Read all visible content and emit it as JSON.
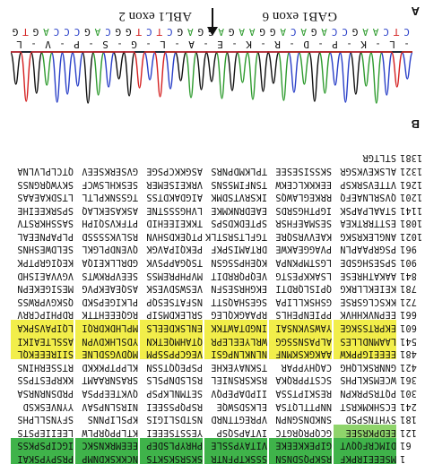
{
  "panel_labels": {
    "a": "A",
    "b": "B"
  },
  "sequence": {
    "rows": [
      {
        "num": "1",
        "blocks": [
          "MSEEEIRPKF",
          "RSKPQSDNSN",
          "SSSKTPFNTR",
          "SKSRSKSKTS",
          "NCKKSKDNMP",
          "PRSPYPSKAI"
        ],
        "hl": [
          "green",
          "green",
          "green",
          "green",
          "green",
          "green"
        ]
      },
      {
        "num": "61",
        "blocks": [
          "DIMCRFQQVT",
          "GIPEKKEEKE",
          "VITAYPSSLE",
          "PHRYPLSDEP",
          "EEEMRKNSKC",
          "IGCIPSPKSS"
        ],
        "hl": [
          "green",
          "green",
          "green",
          "green",
          "green",
          "green"
        ]
      },
      {
        "num": "121",
        "blocks": [
          "EEDPKRSEE",
          "GCQPRQRGTC",
          "IVTAPSQSP",
          "YESSTSEEEI",
          "KTLPPQRPLW",
          "LEEIIEPSTS"
        ],
        "hl": [
          "lime",
          "none",
          "none",
          "none",
          "none",
          "none"
        ]
      },
      {
        "num": "181",
        "blocks": [
          "SYHTNSPSD",
          "SNKDNSGNPN",
          "VPREGTTNRD",
          "NSTDSLIGIS",
          "KPSLIPNNS",
          "SFYNSLLPHS"
        ],
        "hl": [
          "none",
          "none",
          "none",
          "none",
          "none",
          "none"
        ]
      },
      {
        "num": "241",
        "blocks": [
          "ECSHKMKRST",
          "NNPTTLQTSA",
          "ELKSDSWQE",
          "RSPQPSSEEI",
          "NIRSLNPSAV",
          "YYNVESKSD"
        ],
        "hl": [
          "none",
          "none",
          "none",
          "none",
          "none",
          "none"
        ]
      },
      {
        "num": "301",
        "blocks": [
          "PQTRSPRKPN",
          "RESKIPTSSA",
          "IIPDAPEPQV",
          "SETMNLKPSP",
          "QVKTEEPPSA",
          "PRDSNRNRSA"
        ],
        "hl": [
          "none",
          "none",
          "none",
          "none",
          "none",
          "none"
        ]
      },
      {
        "num": "361",
        "blocks": [
          "WCEMSKLPHS",
          "SCSTPPRQKA",
          "RSKSRSNIEL",
          "RSLSDNPSLS",
          "SRASNRAAMT",
          "KKRPESTPSS"
        ],
        "hl": [
          "none",
          "none",
          "none",
          "none",
          "none",
          "none"
        ]
      },
      {
        "num": "421",
        "blocks": [
          "GNNRSKLQHG",
          "CAQHYPPAR",
          "TSKNAYEKHE",
          "PSPEQQTSSN",
          "KLPPTPKKKD",
          "RTSSERHINS"
        ],
        "hl": [
          "none",
          "none",
          "none",
          "none",
          "none",
          "none"
        ]
      },
      {
        "num": "481",
        "blocks": [
          "EEEEIGPPKW",
          "AAKGKSKMNF",
          "NLNKLNPGSI",
          "VEGCPPSSPM",
          "MQDVGSDLNE",
          "SIIREEEKQL"
        ],
        "hl": [
          "yellow",
          "yellow",
          "yellow",
          "yellow",
          "yellow",
          "yellow"
        ]
      },
      {
        "num": "541",
        "blocks": [
          "LAAMNDLLES",
          "ALPASNSSGG",
          "WRLYEELEPR",
          "QTAHMQETKN",
          "YDSLHKDVPN",
          "ASSLTEAIKI"
        ],
        "hl": [
          "yellow",
          "yellow",
          "yellow",
          "yellow",
          "yellow",
          "yellow"
        ]
      },
      {
        "num": "601",
        "blocks": [
          "EKPRTSSKGE",
          "YAWSVKNSAI",
          "INGDTAWTKK",
          "ENLSKDEELS",
          "MPLHDKDRQI",
          "LQIPAVSPKA"
        ],
        "hl": [
          "yellow",
          "yellow",
          "yellow",
          "yellow",
          "yellow",
          "yellow"
        ]
      },
      {
        "num": "661",
        "blocks": [
          "EEPNVKHHVK",
          "PPIENPEHLS",
          "RPAAGKQLEG",
          "SRLEKDMSIP",
          "RGQEEEHTTK",
          "RDPHIPCRRV"
        ],
        "hl": [
          "none",
          "none",
          "none",
          "none",
          "none",
          "none"
        ]
      },
      {
        "num": "721",
        "blocks": [
          "KKSCLGSRSE",
          "GSHSKLLIPA",
          "SGESHAQSTT",
          "NSFATSESQP",
          "PLKIGEPSKD",
          "QSKGVPRWSS"
        ],
        "hl": [
          "none",
          "none",
          "none",
          "none",
          "none",
          "none"
        ]
      },
      {
        "num": "781",
        "blocks": [
          "KEIEKLLRKG",
          "QPISLQRDTI",
          "EKGHRSESFN",
          "VESWSDVESK",
          "ASQEAEKPVG",
          "MESIGEKEPN"
        ],
        "hl": [
          "none",
          "none",
          "none",
          "none",
          "none",
          "none"
        ]
      },
      {
        "num": "841",
        "blocks": [
          "AAKATHRESE",
          "LSAKKPESTG",
          "VEQPQRRDIT",
          "MVPHPREMSS",
          "SEEVPRKWTS",
          "VGVVAEISHD"
        ],
        "hl": [
          "none",
          "none",
          "none",
          "none",
          "none",
          "none"
        ]
      },
      {
        "num": "901",
        "blocks": [
          "SPSESHGSDE",
          "LGSTMPKNPA",
          "KQEHPSSGSN",
          "TSQGAPPSVK",
          "GDRLLKEIQA",
          "KEQIGRPTPK"
        ],
        "hl": [
          "none",
          "none",
          "none",
          "none",
          "none",
          "none"
        ]
      },
      {
        "num": "961",
        "blocks": [
          "PSGRPAAPLN",
          "PVAGGEAKWE",
          "DRTAMISPKF",
          "PEKQIPAVGK",
          "QVENDPLGKL",
          "SELDWESHNS"
        ],
        "hl": [
          "none",
          "none",
          "none",
          "none",
          "none",
          "none"
        ]
      },
      {
        "num": "1021",
        "blocks": [
          "ANGLEKRSKG",
          "KAEVVRSQRE",
          "TGFLTSRSTLK",
          "PTQEKDSHVN",
          "RSLVKSSSSD",
          "PLPAPNEEAL"
        ],
        "hl": [
          "none",
          "none",
          "none",
          "none",
          "none",
          "none"
        ]
      },
      {
        "num": "1081",
        "blocks": [
          "ESTTRRTKEA",
          "SESMAEFHSR",
          "SPTEDKDSPS",
          "TKKEIEEHID",
          "PTFKVSQIPH",
          "SASSHKRSTV"
        ],
        "hl": [
          "none",
          "none",
          "none",
          "none",
          "none",
          "none"
        ]
      },
      {
        "num": "1141",
        "blocks": [
          "STAALPAPSK",
          "IGPTHGSRDS",
          "EAEDRNKMKE",
          "LVHGSSSTNE",
          "ASKASEKLAQ",
          "SPSRKEEIHE"
        ],
        "hl": [
          "none",
          "none",
          "none",
          "none",
          "none",
          "none"
        ]
      },
      {
        "num": "1201",
        "blocks": [
          "QVSRLNAEFQ",
          "RRKEGLAWQS",
          "IKSRVTSDMK",
          "AIGDAKDTSS",
          "TGSSNKPLTL",
          "LTSDKAEAAS"
        ],
        "hl": [
          "none",
          "none",
          "none",
          "none",
          "none",
          "none"
        ]
      },
      {
        "num": "1261",
        "blocks": [
          "VTTEVSRKSP",
          "EEKKKLCEKW",
          "TSNFIMSSNS",
          "VRKEISEMER",
          "SESKHLSWCF",
          "SKYWQRGNSS"
        ],
        "hl": [
          "none",
          "none",
          "none",
          "none",
          "none",
          "none"
        ]
      },
      {
        "num": "1321",
        "blocks": [
          "ALSKEVKSGR",
          "SKSSISESEE",
          "TPLKMDPNRS",
          "ASGKKCPSGE",
          "GVSERKSEEV",
          "QTCLPLVLNA"
        ],
        "hl": [
          "none",
          "none",
          "none",
          "none",
          "none",
          "none"
        ]
      },
      {
        "num": "1381",
        "blocks": [
          "STLTGR",
          "",
          "",
          "",
          "",
          ""
        ],
        "hl": [
          "none",
          "none",
          "none",
          "none",
          "none",
          "none"
        ]
      }
    ]
  },
  "chromatogram": {
    "amino_acids": [
      "-",
      "L",
      "-",
      "K",
      "-",
      "P",
      "-",
      "D",
      "-",
      "R",
      "-",
      "K",
      "-",
      "E",
      "-",
      "A",
      "-",
      "L",
      "-",
      "G",
      "-",
      "S",
      "-",
      "P",
      "-",
      "V",
      "-",
      "L"
    ],
    "nucleotides": [
      "C",
      "T",
      "C",
      "A",
      "A",
      "G",
      "C",
      "C",
      "A",
      "G",
      "A",
      "C",
      "A",
      "G",
      "G",
      "A",
      "A",
      "G",
      "A",
      "G",
      "G",
      "A",
      "G",
      "C",
      "T",
      "C",
      "T",
      "G",
      "G",
      "C",
      "A",
      "G",
      "C",
      "C",
      "C",
      "A",
      "G",
      "T",
      "G"
    ],
    "nt_colors": {
      "A": "#2e9b2e",
      "C": "#2a40c8",
      "G": "#111111",
      "T": "#d42020"
    },
    "exon_left": "GAB1 exon 6",
    "exon_right": "ABL1 exon 2"
  }
}
